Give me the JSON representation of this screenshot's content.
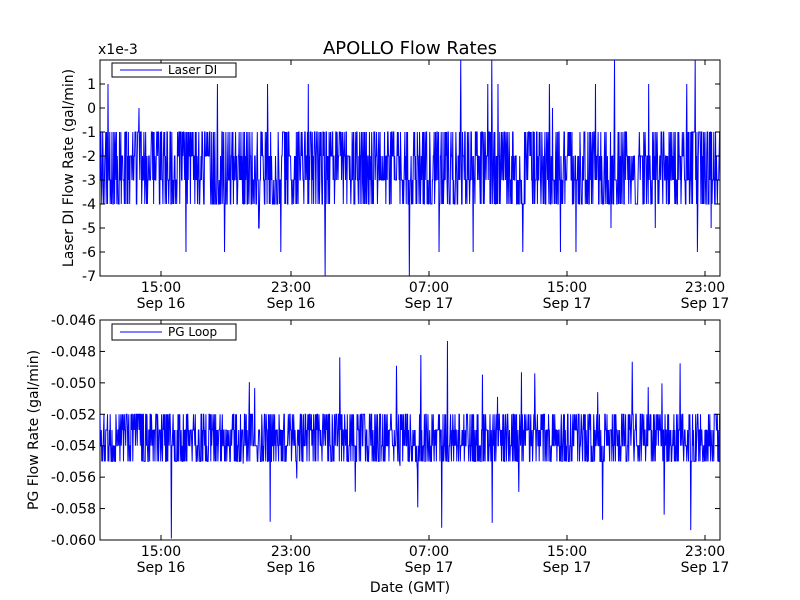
{
  "chart_data": [
    {
      "type": "line",
      "title": "APOLLO Flow Rates",
      "scale_label": "x1e-3",
      "ylabel": "Laser DI Flow Rate (gal/min)",
      "xlabel": "",
      "series_name": "Laser DI",
      "color": "#0000ff",
      "legend_position": "top-left",
      "ylim": [
        -0.007,
        0.002
      ],
      "yticks": [
        1,
        0,
        -1,
        -2,
        -3,
        -4,
        -5,
        -6,
        -7
      ],
      "xticks": [
        {
          "time": "15:00",
          "date": "Sep 16"
        },
        {
          "time": "23:00",
          "date": "Sep 16"
        },
        {
          "time": "07:00",
          "date": "Sep 17"
        },
        {
          "time": "15:00",
          "date": "Sep 17"
        },
        {
          "time": "23:00",
          "date": "Sep 17"
        }
      ],
      "xlim": [
        "Sep 16 10:30",
        "Sep 17 23:45"
      ],
      "typical_values": [
        -0.001,
        -0.002,
        -0.003,
        -0.004
      ],
      "min_value": -0.007,
      "max_value": 0.002
    },
    {
      "type": "line",
      "title": "",
      "ylabel": "PG Flow Rate (gal/min)",
      "xlabel": "Date (GMT)",
      "series_name": "PG Loop",
      "color": "#0000ff",
      "legend_position": "top-left",
      "ylim": [
        -0.06,
        -0.046
      ],
      "yticks": [
        "-0.046",
        "-0.048",
        "-0.050",
        "-0.052",
        "-0.054",
        "-0.056",
        "-0.058",
        "-0.060"
      ],
      "xticks": [
        {
          "time": "15:00",
          "date": "Sep 16"
        },
        {
          "time": "23:00",
          "date": "Sep 16"
        },
        {
          "time": "07:00",
          "date": "Sep 17"
        },
        {
          "time": "15:00",
          "date": "Sep 17"
        },
        {
          "time": "23:00",
          "date": "Sep 17"
        }
      ],
      "xlim": [
        "Sep 16 10:30",
        "Sep 17 23:45"
      ],
      "typical_values": [
        -0.052,
        -0.053,
        -0.054,
        -0.055
      ],
      "min_value": -0.06,
      "max_value": -0.047
    }
  ]
}
